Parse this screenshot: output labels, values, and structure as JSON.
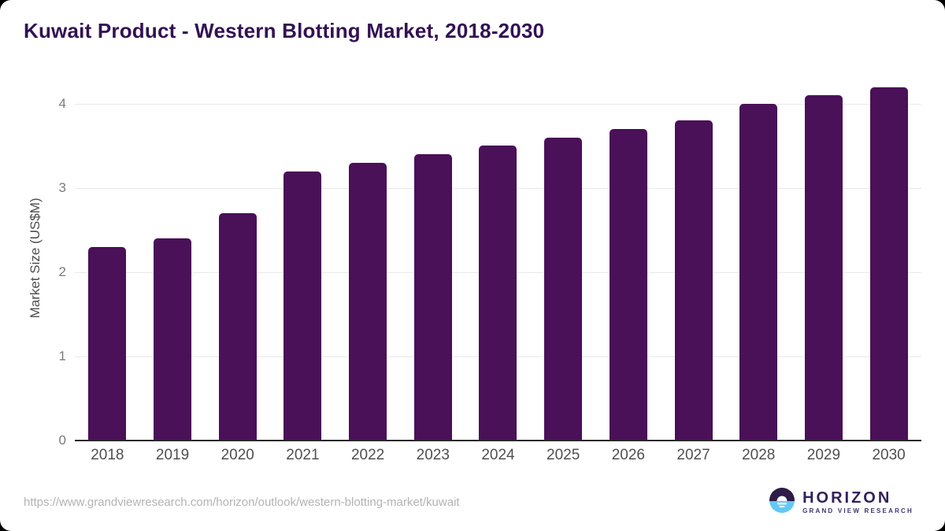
{
  "title": "Kuwait Product - Western Blotting Market, 2018-2030",
  "chart_data": {
    "type": "bar",
    "title": "Kuwait Product - Western Blotting Market, 2018-2030",
    "categories": [
      "2018",
      "2019",
      "2020",
      "2021",
      "2022",
      "2023",
      "2024",
      "2025",
      "2026",
      "2027",
      "2028",
      "2029",
      "2030"
    ],
    "values": [
      2.3,
      2.4,
      2.7,
      3.2,
      3.3,
      3.4,
      3.5,
      3.6,
      3.7,
      3.8,
      4.0,
      4.1,
      4.2
    ],
    "xlabel": "",
    "ylabel": "Market Size (US$M)",
    "ylim": [
      0,
      4.2
    ],
    "yticks": [
      0,
      1,
      2,
      3,
      4
    ],
    "grid": true,
    "legend": false,
    "bar_color": "#4A1058"
  },
  "footer": {
    "source_url": "https://www.grandviewresearch.com/horizon/outlook/western-blotting-market/kuwait",
    "logo": {
      "name": "HORIZON",
      "tagline": "GRAND VIEW RESEARCH"
    }
  },
  "colors": {
    "title": "#331153",
    "bar": "#4A1058",
    "grid": "#E9E9E9",
    "axis_line": "#2A2A2A",
    "x_tick": "#4F4F4F",
    "y_tick": "#7A7A7A",
    "y_label": "#4D4D4D",
    "url": "#B3B3B3",
    "logo_purple": "#2E1B47",
    "logo_blue": "#62C9F3",
    "logo_text": "#33215C",
    "logo_tagline": "#3E3472"
  }
}
